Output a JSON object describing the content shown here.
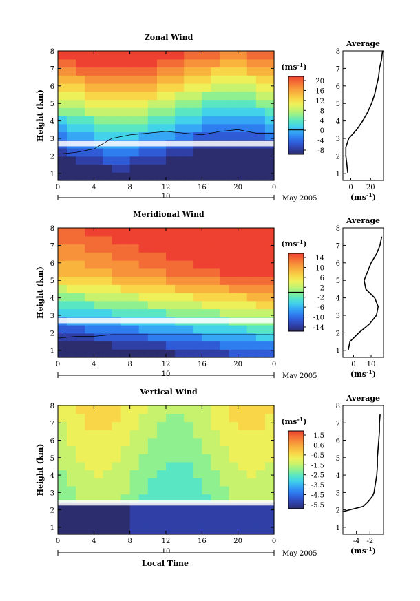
{
  "footer": {
    "xlabel": "Local Time"
  },
  "chart_data": [
    {
      "type": "heatmap",
      "title": "Zonal Wind",
      "ylabel": "Height (km)",
      "xlim": [
        0,
        24
      ],
      "ylim": [
        0.6,
        8
      ],
      "x_ticks": [
        "0",
        "4",
        "8",
        "12",
        "16",
        "20",
        "0"
      ],
      "y_ticks": [
        "1",
        "2",
        "3",
        "4",
        "5",
        "6",
        "7",
        "8"
      ],
      "date_label": "10",
      "month_label": "May 2005",
      "colorbar": {
        "unit": "(ms⁻¹)",
        "range": [
          -10,
          22
        ],
        "ticks": [
          "20",
          "16",
          "12",
          "8",
          "4",
          "0",
          "-4",
          "-8"
        ],
        "zero_line": 0
      },
      "zero_contour_height_km": [
        2.1,
        2.2,
        2.4,
        3.0,
        3.2,
        3.3,
        3.4,
        3.3,
        3.2,
        3.4,
        3.5,
        3.3,
        3.3
      ],
      "average_profile": {
        "title": "Average",
        "xlabel": "(ms⁻¹)",
        "x_ticks": [
          "0",
          "20"
        ],
        "xlim": [
          -8,
          33
        ],
        "height_km": [
          1.0,
          1.5,
          2.0,
          2.5,
          3.0,
          3.5,
          4.0,
          4.5,
          5.0,
          5.5,
          6.0,
          6.5,
          7.0,
          7.5,
          8.0
        ],
        "value": [
          -3,
          -4,
          -5,
          -5,
          -2,
          6,
          12,
          17,
          21,
          24,
          26,
          28,
          29,
          31,
          32
        ]
      }
    },
    {
      "type": "heatmap",
      "title": "Meridional Wind",
      "ylabel": "Height (km)",
      "xlim": [
        0,
        24
      ],
      "ylim": [
        0.6,
        8
      ],
      "x_ticks": [
        "0",
        "4",
        "8",
        "12",
        "16",
        "20",
        "0"
      ],
      "y_ticks": [
        "1",
        "2",
        "3",
        "4",
        "5",
        "6",
        "7",
        "8"
      ],
      "date_label": "10",
      "month_label": "May 2005",
      "colorbar": {
        "unit": "(ms⁻¹)",
        "range": [
          -16,
          16
        ],
        "ticks": [
          "14",
          "10",
          "6",
          "2",
          "-2",
          "-6",
          "-10",
          "-14"
        ],
        "zero_line": 0
      },
      "zero_contour_height_km": [
        1.7,
        1.8,
        1.8,
        1.9,
        1.9,
        1.9,
        1.9,
        1.9,
        1.9,
        1.9,
        1.9,
        1.9,
        1.9
      ],
      "average_profile": {
        "title": "Average",
        "xlabel": "(ms⁻¹)",
        "x_ticks": [
          "0",
          "10"
        ],
        "xlim": [
          -6,
          17
        ],
        "height_km": [
          1.0,
          1.5,
          2.0,
          2.5,
          3.0,
          3.5,
          4.0,
          4.5,
          5.0,
          5.5,
          6.0,
          6.5,
          7.0,
          7.5
        ],
        "value": [
          -3,
          -2,
          3,
          9,
          13,
          14,
          12,
          7,
          6,
          8,
          10,
          13,
          15,
          16
        ]
      }
    },
    {
      "type": "heatmap",
      "title": "Vertical Wind",
      "ylabel": "Height (km)",
      "xlim": [
        0,
        24
      ],
      "ylim": [
        0.6,
        8
      ],
      "x_ticks": [
        "0",
        "4",
        "8",
        "12",
        "16",
        "20",
        "0"
      ],
      "y_ticks": [
        "1",
        "2",
        "3",
        "4",
        "5",
        "6",
        "7",
        "8"
      ],
      "date_label": "10",
      "month_label": "May 2005",
      "colorbar": {
        "unit": "(ms⁻¹)",
        "range": [
          -6,
          2
        ],
        "ticks": [
          "1.5",
          "0.6",
          "-0.5",
          "-1.5",
          "-2.5",
          "-3.5",
          "-4.5",
          "-5.5"
        ]
      },
      "average_profile": {
        "title": "Average",
        "xlabel": "(ms⁻¹)",
        "x_ticks": [
          "-4",
          "-2"
        ],
        "xlim": [
          -6,
          0
        ],
        "height_km": [
          1.9,
          2.0,
          2.2,
          2.5,
          2.8,
          3.0,
          3.5,
          4.0,
          4.5,
          5.0,
          5.5,
          6.0,
          6.5,
          7.0,
          7.5
        ],
        "value": [
          -6.0,
          -5.0,
          -3.0,
          -2.2,
          -1.6,
          -1.4,
          -1.2,
          -1.0,
          -0.9,
          -0.9,
          -0.8,
          -0.7,
          -0.6,
          -0.6,
          -0.5
        ]
      }
    }
  ]
}
